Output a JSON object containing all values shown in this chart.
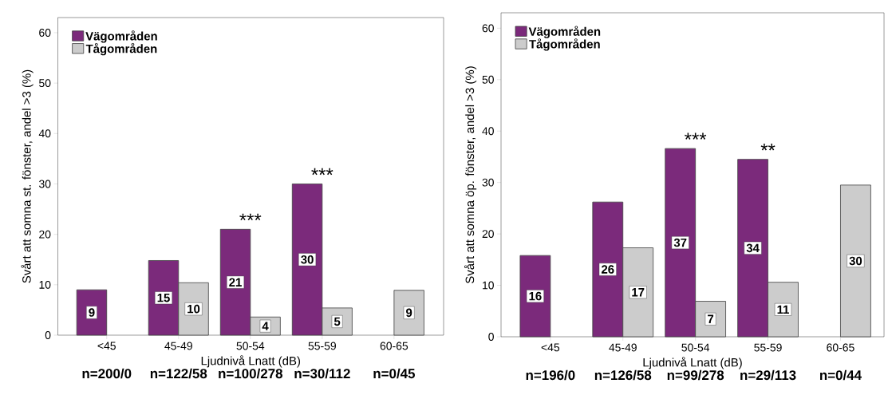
{
  "chart_data": [
    {
      "type": "bar",
      "xlabel": "Ljudnivå Lnatt (dB)",
      "ylabel": "Svårt att somna st. fönster, andel >3 (%)",
      "categories": [
        "<45",
        "45-49",
        "50-54",
        "55-59",
        "60-65"
      ],
      "series": [
        {
          "name": "Vägområden",
          "color": "#7b2a7b",
          "values": [
            9.0,
            14.8,
            21.0,
            30.0,
            null
          ],
          "value_labels": [
            "9",
            "15",
            "21",
            "30",
            null
          ]
        },
        {
          "name": "Tågområden",
          "color": "#cccccc",
          "values": [
            null,
            10.4,
            3.6,
            5.4,
            8.9
          ],
          "value_labels": [
            null,
            "10",
            "4",
            "5",
            "9"
          ]
        }
      ],
      "ylim": [
        0,
        63
      ],
      "yticks": [
        0,
        10,
        20,
        30,
        40,
        50,
        60
      ],
      "legend": "top left",
      "annotations": [
        {
          "text": "***",
          "x": "50-54",
          "y": 21.0
        },
        {
          "text": "***",
          "x": "55-59",
          "y": 30.0
        },
        "n=200/0",
        "n=122/58",
        "n=100/278",
        "n=30/112",
        "n=0/45"
      ]
    },
    {
      "type": "bar",
      "xlabel": "Ljudnivå Lnatt (dB)",
      "ylabel": "Svårt att somna öp. fönster, andel >3 (%)",
      "categories": [
        "<45",
        "45-49",
        "50-54",
        "55-59",
        "60-65"
      ],
      "series": [
        {
          "name": "Vägområden",
          "color": "#7b2a7b",
          "values": [
            15.8,
            26.2,
            36.6,
            34.5,
            null
          ],
          "value_labels": [
            "16",
            "26",
            "37",
            "34",
            null
          ]
        },
        {
          "name": "Tågområden",
          "color": "#cccccc",
          "values": [
            null,
            17.3,
            6.9,
            10.6,
            29.5
          ],
          "value_labels": [
            null,
            "17",
            "7",
            "11",
            "30"
          ]
        }
      ],
      "ylim": [
        0,
        63
      ],
      "yticks": [
        0,
        10,
        20,
        30,
        40,
        50,
        60
      ],
      "legend": "top left",
      "annotations": [
        {
          "text": "***",
          "x": "50-54",
          "y": 36.6
        },
        {
          "text": "**",
          "x": "55-59",
          "y": 34.5
        },
        "n=196/0",
        "n=126/58",
        "n=99/278",
        "n=29/113",
        "n=0/44"
      ]
    }
  ]
}
